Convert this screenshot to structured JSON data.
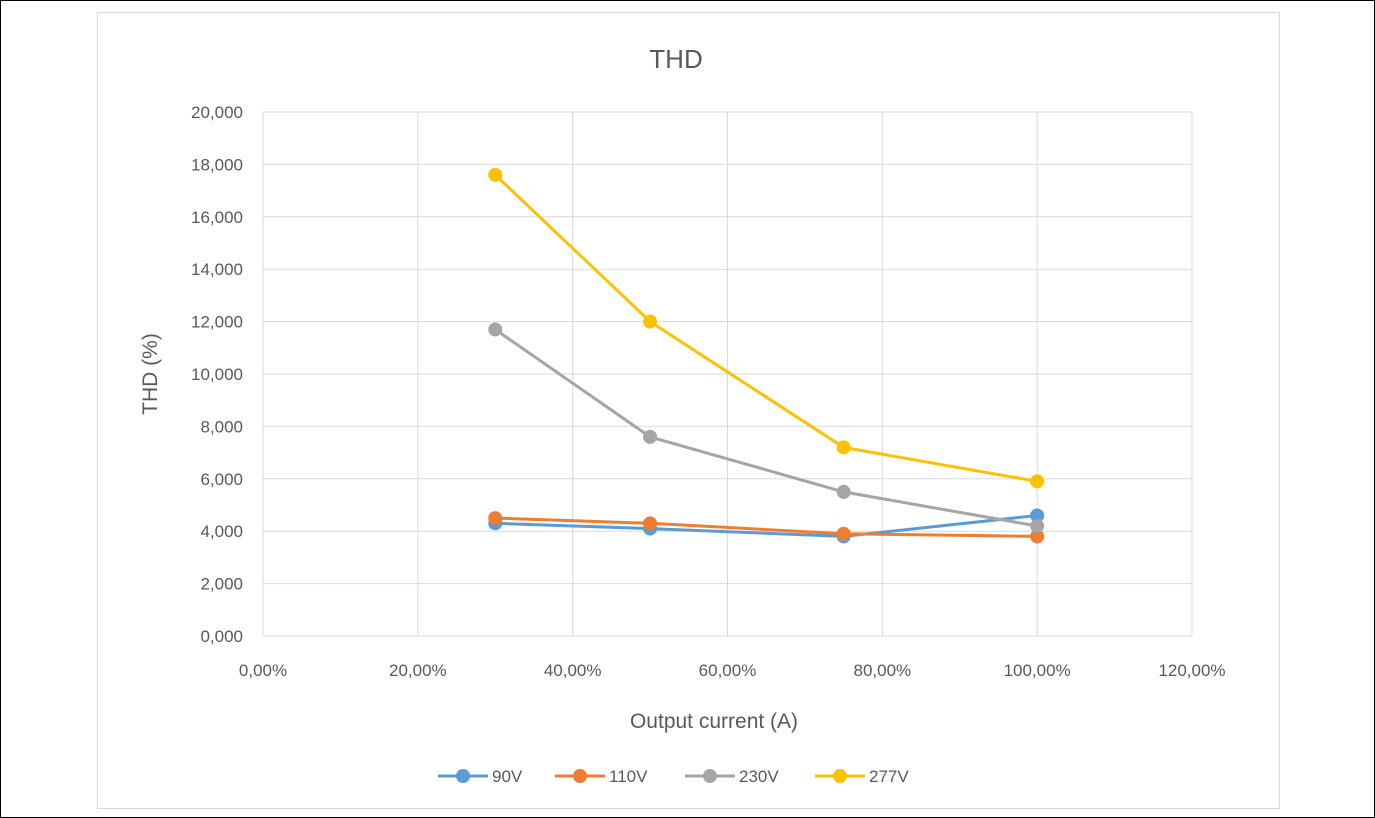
{
  "chart_data": {
    "type": "line",
    "title": "THD",
    "xlabel": "Output current (A)",
    "ylabel": "THD (%)",
    "xlim": [
      0,
      1.2
    ],
    "ylim": [
      0,
      20
    ],
    "x_ticks": [
      0,
      0.2,
      0.4,
      0.6,
      0.8,
      1.0,
      1.2
    ],
    "x_tick_labels": [
      "0,00%",
      "20,00%",
      "40,00%",
      "60,00%",
      "80,00%",
      "100,00%",
      "120,00%"
    ],
    "y_ticks": [
      0,
      2,
      4,
      6,
      8,
      10,
      12,
      14,
      16,
      18,
      20
    ],
    "y_tick_labels": [
      "0,000",
      "2,000",
      "4,000",
      "6,000",
      "8,000",
      "10,000",
      "12,000",
      "14,000",
      "16,000",
      "18,000",
      "20,000"
    ],
    "grid": true,
    "legend_position": "bottom",
    "series": [
      {
        "name": "90V",
        "color": "#5b9bd5",
        "x": [
          0.3,
          0.5,
          0.75,
          1.0
        ],
        "y": [
          4.3,
          4.1,
          3.8,
          4.6
        ]
      },
      {
        "name": "110V",
        "color": "#ed7d31",
        "x": [
          0.3,
          0.5,
          0.75,
          1.0
        ],
        "y": [
          4.5,
          4.3,
          3.9,
          3.8
        ]
      },
      {
        "name": "230V",
        "color": "#a5a5a5",
        "x": [
          0.3,
          0.5,
          0.75,
          1.0
        ],
        "y": [
          11.7,
          7.6,
          5.5,
          4.2
        ]
      },
      {
        "name": "277V",
        "color": "#ffc000",
        "x": [
          0.3,
          0.5,
          0.75,
          1.0
        ],
        "y": [
          17.6,
          12.0,
          7.2,
          5.9
        ]
      }
    ]
  }
}
